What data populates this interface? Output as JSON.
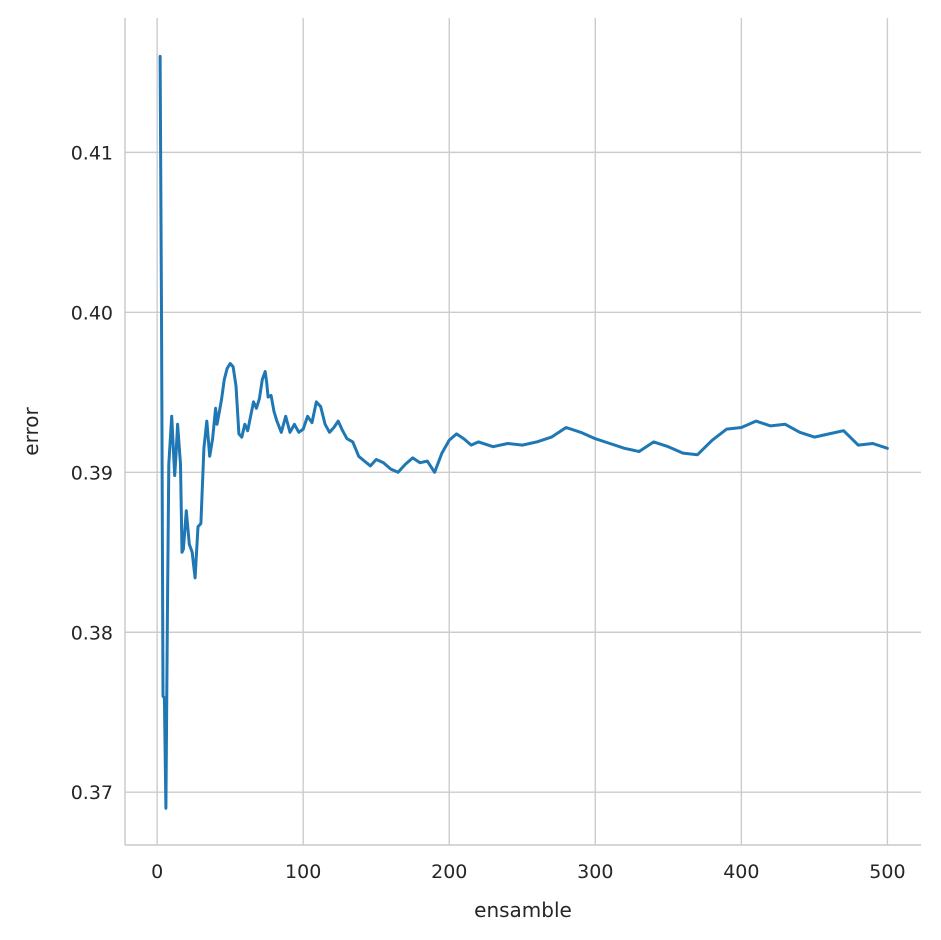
{
  "chart_data": {
    "type": "line",
    "xlabel": "ensamble",
    "ylabel": "error",
    "xlim": [
      -22,
      523
    ],
    "ylim": [
      0.3667,
      0.4184
    ],
    "xticks": [
      0,
      100,
      200,
      300,
      400,
      500
    ],
    "yticks": [
      0.37,
      0.38,
      0.39,
      0.4,
      0.41
    ],
    "xtick_labels": [
      "0",
      "100",
      "200",
      "300",
      "400",
      "500"
    ],
    "ytick_labels": [
      "0.37",
      "0.38",
      "0.39",
      "0.40",
      "0.41"
    ],
    "grid": true,
    "series": [
      {
        "color": "#1f77b4",
        "x": [
          2,
          3,
          4,
          5,
          6,
          7,
          8,
          10,
          12,
          13,
          14,
          16,
          17,
          18,
          20,
          22,
          24,
          25,
          26,
          28,
          30,
          32,
          34,
          36,
          38,
          40,
          41,
          42,
          44,
          46,
          48,
          50,
          52,
          54,
          56,
          58,
          60,
          62,
          64,
          66,
          68,
          70,
          72,
          74,
          75,
          76,
          78,
          80,
          82,
          85,
          88,
          91,
          94,
          97,
          100,
          103,
          106,
          109,
          112,
          115,
          118,
          121,
          124,
          127,
          130,
          134,
          138,
          142,
          146,
          150,
          155,
          160,
          165,
          170,
          175,
          180,
          185,
          190,
          195,
          200,
          205,
          210,
          215,
          220,
          230,
          240,
          250,
          260,
          270,
          280,
          290,
          300,
          310,
          320,
          330,
          340,
          350,
          360,
          370,
          380,
          390,
          400,
          410,
          420,
          430,
          440,
          450,
          460,
          470,
          480,
          490,
          500
        ],
        "y": [
          0.416,
          0.4,
          0.376,
          0.3759,
          0.369,
          0.381,
          0.3905,
          0.3935,
          0.3898,
          0.3912,
          0.393,
          0.3905,
          0.385,
          0.3852,
          0.3876,
          0.3855,
          0.385,
          0.3842,
          0.3834,
          0.3866,
          0.3868,
          0.3915,
          0.3932,
          0.391,
          0.3921,
          0.394,
          0.393,
          0.3935,
          0.3945,
          0.3958,
          0.3965,
          0.3968,
          0.3966,
          0.3954,
          0.3924,
          0.3922,
          0.393,
          0.3926,
          0.3935,
          0.3944,
          0.394,
          0.3946,
          0.3958,
          0.3963,
          0.3956,
          0.3947,
          0.3948,
          0.3938,
          0.3932,
          0.3925,
          0.3935,
          0.3925,
          0.393,
          0.3925,
          0.3927,
          0.3935,
          0.3931,
          0.3944,
          0.3941,
          0.393,
          0.3925,
          0.3928,
          0.3932,
          0.3926,
          0.3921,
          0.3919,
          0.391,
          0.3907,
          0.3904,
          0.3908,
          0.3906,
          0.3902,
          0.39,
          0.3905,
          0.3909,
          0.3906,
          0.3907,
          0.39,
          0.3912,
          0.392,
          0.3924,
          0.3921,
          0.3917,
          0.3919,
          0.3916,
          0.3918,
          0.3917,
          0.3919,
          0.3922,
          0.3928,
          0.3925,
          0.3921,
          0.3918,
          0.3915,
          0.3913,
          0.3919,
          0.3916,
          0.3912,
          0.3911,
          0.392,
          0.3927,
          0.3928,
          0.3932,
          0.3929,
          0.393,
          0.3925,
          0.3922,
          0.3924,
          0.3926,
          0.3917,
          0.3918,
          0.3915
        ]
      }
    ]
  }
}
